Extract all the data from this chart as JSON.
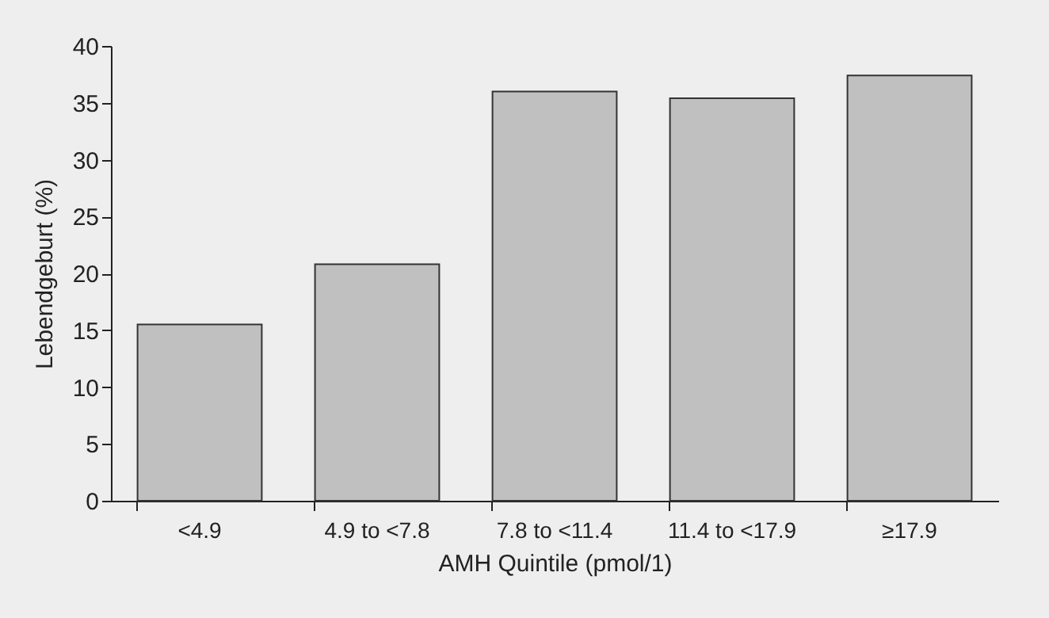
{
  "chart_data": {
    "type": "bar",
    "xlabel": "AMH Quintile (pmol/1)",
    "ylabel": "Lebendgeburt (%)",
    "categories": [
      "<4.9",
      "4.9 to <7.8",
      "7.8 to <11.4",
      "11.4 to <17.9",
      "≥17.9"
    ],
    "values": [
      15.5,
      20.8,
      36.0,
      35.4,
      37.4
    ],
    "color": "#c0c0c0",
    "ylim": [
      0,
      40
    ],
    "yticks": [
      0,
      5,
      10,
      15,
      20,
      25,
      30,
      35,
      40
    ],
    "grid": false
  }
}
